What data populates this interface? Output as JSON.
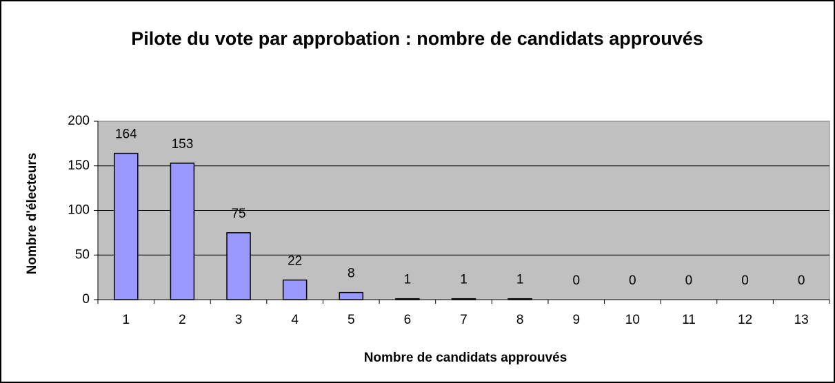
{
  "chart_data": {
    "type": "bar",
    "title": "Pilote du vote par approbation : nombre de candidats approuvés",
    "x_label": "Nombre de candidats approuvés",
    "y_label": "Nombre d'électeurs",
    "categories": [
      "1",
      "2",
      "3",
      "4",
      "5",
      "6",
      "7",
      "8",
      "9",
      "10",
      "11",
      "12",
      "13"
    ],
    "values": [
      164,
      153,
      75,
      22,
      8,
      1,
      1,
      1,
      0,
      0,
      0,
      0,
      0
    ],
    "color": "#9999ff",
    "ylim": [
      0,
      200
    ],
    "yticks": [
      0,
      50,
      100,
      150,
      200
    ],
    "grid": true
  }
}
